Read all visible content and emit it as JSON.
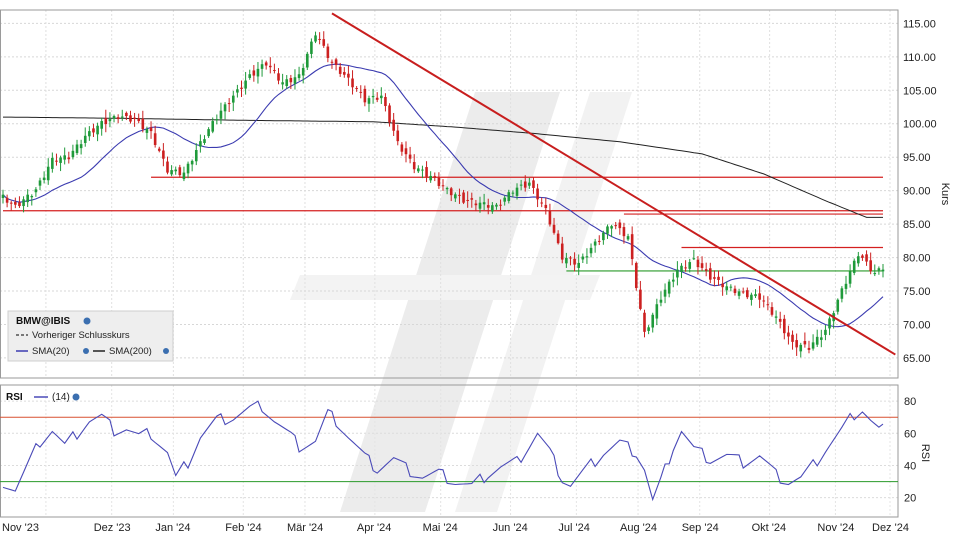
{
  "chart_data": [
    {
      "panel": "price",
      "type": "candlestick",
      "symbol": "BMW@IBIS",
      "ylabel": "Kurs",
      "ylim": [
        62,
        117
      ],
      "yticks": [
        65,
        70,
        75,
        80,
        85,
        90,
        95,
        100,
        105,
        110,
        115
      ],
      "ytick_labels": [
        "65.00",
        "70.00",
        "75.00",
        "80.00",
        "85.00",
        "90.00",
        "95.00",
        "100.00",
        "105.00",
        "110.00",
        "115.00"
      ],
      "x_month_labels": [
        "Nov '23",
        "Dez '23",
        "Jan '24",
        "Feb '24",
        "Mär '24",
        "Apr '24",
        "Mai '24",
        "Jun '24",
        "Jul '24",
        "Aug '24",
        "Sep '24",
        "Okt '24",
        "Nov '24",
        "Dez '24"
      ],
      "legend": {
        "title": "BMW@IBIS",
        "items": [
          {
            "label": "Vorheriger Schlusskurs",
            "style": "dashed",
            "color": "#333333"
          },
          {
            "label": "SMA(20)",
            "style": "solid",
            "color": "#3b3bb0"
          },
          {
            "label": "SMA(200)",
            "style": "solid",
            "color": "#222222"
          }
        ]
      },
      "close_anchors": [
        [
          0,
          89
        ],
        [
          3,
          87.5
        ],
        [
          8,
          90
        ],
        [
          12,
          94.5
        ],
        [
          16,
          95
        ],
        [
          20,
          98
        ],
        [
          24,
          100
        ],
        [
          28,
          101
        ],
        [
          32,
          100.5
        ],
        [
          36,
          98.5
        ],
        [
          40,
          93
        ],
        [
          44,
          92.5
        ],
        [
          48,
          97
        ],
        [
          52,
          101
        ],
        [
          56,
          104
        ],
        [
          60,
          107
        ],
        [
          64,
          109
        ],
        [
          68,
          106
        ],
        [
          72,
          107
        ],
        [
          76,
          113.5
        ],
        [
          80,
          109
        ],
        [
          84,
          106.5
        ],
        [
          88,
          103.5
        ],
        [
          92,
          104
        ],
        [
          96,
          97
        ],
        [
          100,
          93.5
        ],
        [
          104,
          92
        ],
        [
          108,
          90
        ],
        [
          112,
          88.5
        ],
        [
          116,
          88
        ],
        [
          120,
          87.5
        ],
        [
          124,
          90
        ],
        [
          128,
          91
        ],
        [
          132,
          87
        ],
        [
          136,
          80
        ],
        [
          140,
          79
        ],
        [
          144,
          82
        ],
        [
          148,
          85
        ],
        [
          152,
          83
        ],
        [
          156,
          68.5
        ],
        [
          160,
          74
        ],
        [
          164,
          78
        ],
        [
          168,
          79.5
        ],
        [
          172,
          77
        ],
        [
          176,
          75.5
        ],
        [
          180,
          74.5
        ],
        [
          184,
          74
        ],
        [
          188,
          71
        ],
        [
          192,
          67
        ],
        [
          196,
          66.5
        ],
        [
          200,
          69
        ],
        [
          204,
          75
        ],
        [
          208,
          80.5
        ],
        [
          212,
          77.5
        ],
        [
          214,
          78.5
        ]
      ],
      "sma200_anchors": [
        [
          0,
          101
        ],
        [
          30,
          100.8
        ],
        [
          60,
          100.5
        ],
        [
          90,
          100.3
        ],
        [
          110,
          99.5
        ],
        [
          130,
          98.5
        ],
        [
          150,
          97.3
        ],
        [
          170,
          95.5
        ],
        [
          185,
          92.5
        ],
        [
          200,
          88.5
        ],
        [
          210,
          86
        ]
      ],
      "horizontal_lines": [
        {
          "y": 92,
          "x0": 36,
          "x1": 214,
          "color": "#d42020"
        },
        {
          "y": 87,
          "x0": 0,
          "x1": 214,
          "color": "#d42020"
        },
        {
          "y": 86.5,
          "x0": 151,
          "x1": 214,
          "color": "#d42020"
        },
        {
          "y": 81.5,
          "x0": 165,
          "x1": 214,
          "color": "#d42020"
        },
        {
          "y": 78,
          "x0": 137,
          "x1": 214,
          "color": "#2a9a2a"
        }
      ],
      "trendline": {
        "x0": 80,
        "y0": 116.5,
        "x1": 217,
        "y1": 65.5,
        "color": "#c81e1e"
      }
    },
    {
      "panel": "rsi",
      "type": "line",
      "name": "RSI",
      "period_label": "(14)",
      "ylabel": "RSI",
      "ylim": [
        8,
        90
      ],
      "yticks": [
        20,
        40,
        60,
        80
      ],
      "levels": [
        {
          "y": 70,
          "color": "#d85030"
        },
        {
          "y": 30,
          "color": "#2a9a2a"
        }
      ],
      "anchors": [
        [
          0,
          30
        ],
        [
          3,
          25
        ],
        [
          6,
          40
        ],
        [
          9,
          55
        ],
        [
          12,
          62
        ],
        [
          15,
          52
        ],
        [
          18,
          60
        ],
        [
          21,
          68
        ],
        [
          24,
          70
        ],
        [
          27,
          62
        ],
        [
          30,
          63
        ],
        [
          33,
          58
        ],
        [
          36,
          60
        ],
        [
          40,
          48
        ],
        [
          42,
          32
        ],
        [
          45,
          42
        ],
        [
          48,
          58
        ],
        [
          52,
          68
        ],
        [
          56,
          70
        ],
        [
          60,
          75
        ],
        [
          63,
          77
        ],
        [
          66,
          68
        ],
        [
          70,
          58
        ],
        [
          72,
          52
        ],
        [
          76,
          55
        ],
        [
          79,
          72
        ],
        [
          81,
          68
        ],
        [
          84,
          58
        ],
        [
          88,
          45
        ],
        [
          91,
          38
        ],
        [
          95,
          44
        ],
        [
          98,
          38
        ],
        [
          102,
          33
        ],
        [
          106,
          35
        ],
        [
          110,
          30
        ],
        [
          114,
          27
        ],
        [
          118,
          35
        ],
        [
          121,
          39
        ],
        [
          125,
          42
        ],
        [
          130,
          60
        ],
        [
          133,
          48
        ],
        [
          136,
          32
        ],
        [
          138,
          28
        ],
        [
          142,
          38
        ],
        [
          146,
          48
        ],
        [
          150,
          54
        ],
        [
          154,
          48
        ],
        [
          156,
          38
        ],
        [
          158,
          18
        ],
        [
          160,
          30
        ],
        [
          163,
          52
        ],
        [
          165,
          62
        ],
        [
          168,
          50
        ],
        [
          172,
          44
        ],
        [
          176,
          46
        ],
        [
          180,
          42
        ],
        [
          184,
          46
        ],
        [
          186,
          40
        ],
        [
          188,
          34
        ],
        [
          191,
          30
        ],
        [
          194,
          32
        ],
        [
          197,
          40
        ],
        [
          200,
          50
        ],
        [
          204,
          62
        ],
        [
          207,
          72
        ],
        [
          209,
          75
        ],
        [
          211,
          68
        ],
        [
          213,
          62
        ],
        [
          215,
          64
        ]
      ]
    }
  ]
}
